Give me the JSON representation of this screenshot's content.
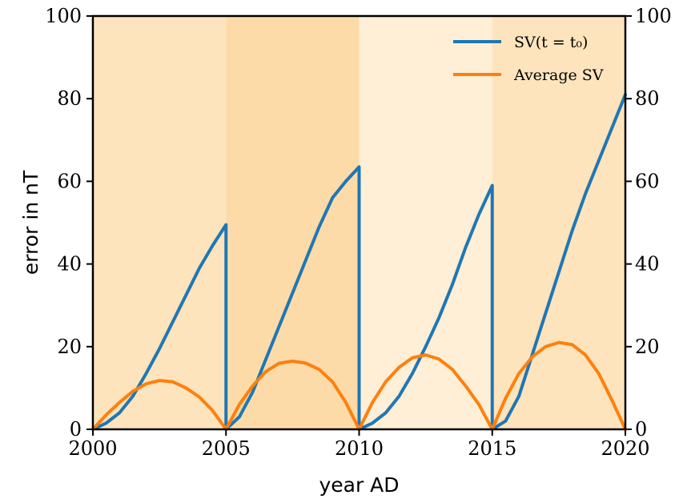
{
  "chart_data": {
    "type": "line",
    "xlabel": "year AD",
    "ylabel": "error in nT",
    "xlim": [
      2000,
      2020
    ],
    "ylim": [
      0,
      100
    ],
    "x_ticks": [
      "2000",
      "2005",
      "2010",
      "2015",
      "2020"
    ],
    "y_ticks": [
      "0",
      "20",
      "40",
      "60",
      "80",
      "100"
    ],
    "y_ticks_right": [
      "0",
      "20",
      "40",
      "60",
      "80",
      "100"
    ],
    "grid": false,
    "legend_position": "top-right",
    "background_bands": [
      {
        "from": 2000,
        "to": 2005,
        "color": "#fde4bc"
      },
      {
        "from": 2005,
        "to": 2010,
        "color": "#fcdba8"
      },
      {
        "from": 2010,
        "to": 2015,
        "color": "#feefd6"
      },
      {
        "from": 2015,
        "to": 2020,
        "color": "#fde4bc"
      }
    ],
    "series": [
      {
        "name": "SV(t = t₀)",
        "color": "#1f77b4",
        "x": [
          2000,
          2000.5,
          2001,
          2001.5,
          2002,
          2002.5,
          2003,
          2003.5,
          2004,
          2004.5,
          2005,
          2005,
          2005.5,
          2006,
          2006.5,
          2007,
          2007.5,
          2008,
          2008.5,
          2009,
          2009.5,
          2010,
          2010,
          2010.5,
          2011,
          2011.5,
          2012,
          2012.5,
          2013,
          2013.5,
          2014,
          2014.5,
          2015,
          2015,
          2015.5,
          2016,
          2016.5,
          2017,
          2017.5,
          2018,
          2018.5,
          2019,
          2019.5,
          2020
        ],
        "y": [
          0,
          1.5,
          4,
          8,
          13.5,
          19.5,
          26,
          32.5,
          39,
          44.5,
          49.5,
          0,
          3,
          9,
          17,
          25,
          33,
          41,
          49,
          56,
          60,
          63.5,
          0,
          1.5,
          4,
          8,
          13.5,
          20,
          27,
          35,
          44,
          52,
          59,
          0,
          2,
          8,
          18,
          28,
          38,
          48,
          57,
          65,
          73,
          81
        ]
      },
      {
        "name": "Average SV",
        "color": "#ff7f0e",
        "x": [
          2000,
          2000.5,
          2001,
          2001.5,
          2002,
          2002.5,
          2003,
          2003.5,
          2004,
          2004.5,
          2005,
          2005.5,
          2006,
          2006.5,
          2007,
          2007.5,
          2008,
          2008.5,
          2009,
          2009.5,
          2010,
          2010.5,
          2011,
          2011.5,
          2012,
          2012.5,
          2013,
          2013.5,
          2014,
          2014.5,
          2015,
          2015.5,
          2016,
          2016.5,
          2017,
          2017.5,
          2018,
          2018.5,
          2019,
          2019.5,
          2020
        ],
        "y": [
          0,
          3.5,
          6.5,
          9.2,
          11,
          11.8,
          11.5,
          10,
          7.8,
          4.5,
          0,
          6,
          10.5,
          14,
          16,
          16.5,
          16,
          14.5,
          11.5,
          6.5,
          0,
          6.5,
          11.5,
          15,
          17.3,
          18,
          17,
          14.5,
          10.5,
          6,
          0,
          7.5,
          13.5,
          17.5,
          20,
          21,
          20.5,
          18,
          13.5,
          7,
          0
        ]
      }
    ]
  }
}
